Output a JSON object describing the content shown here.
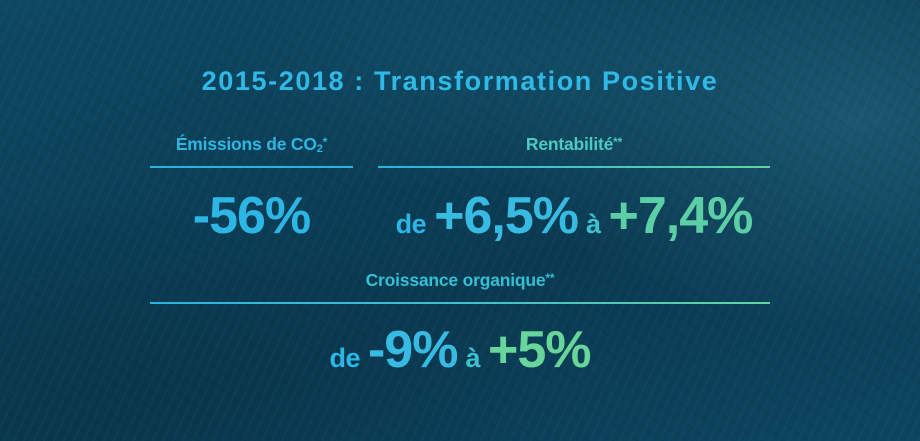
{
  "title": "2015-2018 : Transformation Positive",
  "emissions": {
    "label_main": "Émissions de CO",
    "label_sub": "2",
    "label_mark": "*",
    "value": "-56%"
  },
  "rentabilite": {
    "label_main": "Rentabilité",
    "label_mark": "**",
    "prefix": "de",
    "from": "+6,5%",
    "connector": "à",
    "to": "+7,4%"
  },
  "croissance": {
    "label_main": "Croissance organique",
    "label_mark": "**",
    "prefix": "de",
    "from": "-9%",
    "connector": "à",
    "to": "+5%"
  },
  "colors": {
    "blue": "#2cb6e6",
    "teal": "#3fc0cf",
    "green": "#5ccfa6",
    "background": "#0b3f58"
  }
}
